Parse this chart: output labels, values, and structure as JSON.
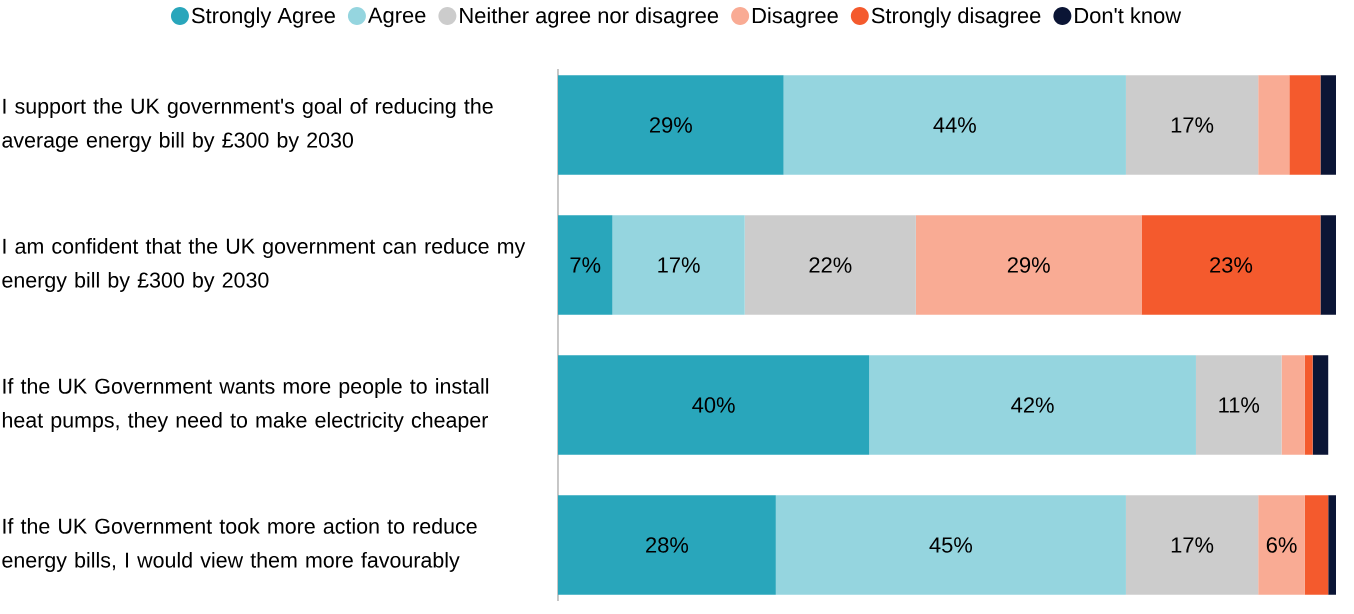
{
  "chart_data": {
    "type": "bar",
    "orientation": "horizontal",
    "stacked": true,
    "legend": "top",
    "categories": [
      "I support the UK government's goal of reducing the average energy bill by £300 by 2030",
      "I am confident that the UK government can reduce my energy bill by £300 by 2030",
      "If the UK Government wants more people to install heat pumps, they need to make electricity cheaper",
      "If the UK Government took more action to reduce energy bills, I would view them more favourably"
    ],
    "series": [
      {
        "name": "Strongly Agree",
        "color": "#29a6bb",
        "values": [
          29,
          7,
          40,
          28
        ],
        "value_labels": [
          "29%",
          "7%",
          "40%",
          "28%"
        ]
      },
      {
        "name": "Agree",
        "color": "#95d5df",
        "values": [
          44,
          17,
          42,
          45
        ],
        "value_labels": [
          "44%",
          "17%",
          "42%",
          "45%"
        ]
      },
      {
        "name": "Neither agree nor disagree",
        "color": "#cccccc",
        "values": [
          17,
          22,
          11,
          17
        ],
        "value_labels": [
          "17%",
          "22%",
          "11%",
          "17%"
        ]
      },
      {
        "name": "Disagree",
        "color": "#f9ab94",
        "values": [
          4,
          29,
          3,
          6
        ],
        "value_labels": [
          null,
          "29%",
          null,
          "6%"
        ]
      },
      {
        "name": "Strongly disagree",
        "color": "#f45a2d",
        "values": [
          4,
          23,
          1,
          3
        ],
        "value_labels": [
          null,
          "23%",
          null,
          null
        ]
      },
      {
        "name": "Don't know",
        "color": "#0b1535",
        "values": [
          2,
          2,
          2,
          1
        ]
      }
    ]
  }
}
